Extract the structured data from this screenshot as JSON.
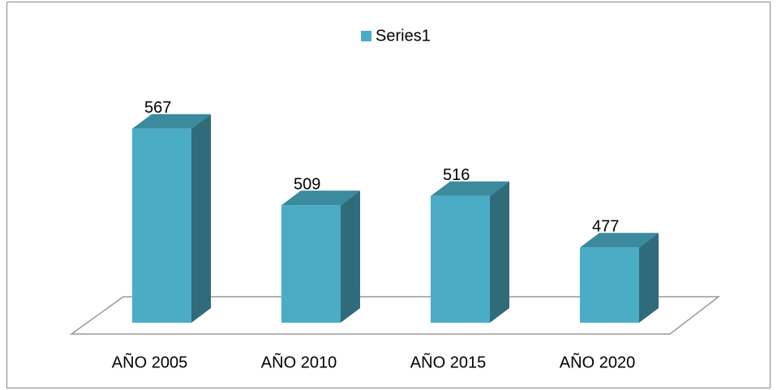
{
  "chart_data": {
    "type": "bar3d",
    "categories": [
      "AÑO 2005",
      "AÑO 2010",
      "AÑO 2015",
      "AÑO 2020"
    ],
    "series": [
      {
        "name": "Series1",
        "color": "#4bacc6",
        "values": [
          567,
          509,
          516,
          477
        ]
      }
    ],
    "ylim": [
      420,
      600
    ],
    "legend": "top"
  }
}
